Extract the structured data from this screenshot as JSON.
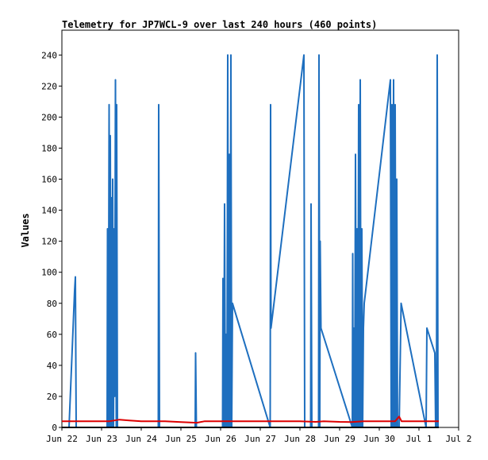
{
  "chart_data": {
    "type": "line",
    "title": "Telemetry for JP7WCL-9 over last 240 hours (460 points)",
    "xlabel": "",
    "ylabel": "Values",
    "x_tick_labels": [
      "Jun 22",
      "Jun 23",
      "Jun 24",
      "Jun 25",
      "Jun 26",
      "Jun 27",
      "Jun 28",
      "Jun 29",
      "Jun 30",
      "Jul 1",
      "Jul 2"
    ],
    "xlim_days": [
      0,
      10
    ],
    "ylim": [
      0,
      256
    ],
    "y_ticks": [
      0,
      20,
      40,
      60,
      80,
      100,
      120,
      140,
      160,
      180,
      200,
      220,
      240
    ],
    "grid": false,
    "legend": "none",
    "series": [
      {
        "color": "#1e6fbf",
        "points": [
          [
            0.18,
            0
          ],
          [
            0.32,
            88
          ],
          [
            0.34,
            97
          ],
          [
            0.36,
            0
          ],
          [
            1.14,
            0
          ],
          [
            1.15,
            128
          ],
          [
            1.17,
            0
          ],
          [
            1.19,
            208
          ],
          [
            1.21,
            0
          ],
          [
            1.22,
            188
          ],
          [
            1.24,
            0
          ],
          [
            1.25,
            148
          ],
          [
            1.27,
            0
          ],
          [
            1.28,
            160
          ],
          [
            1.3,
            0
          ],
          [
            1.32,
            128
          ],
          [
            1.33,
            20
          ],
          [
            1.35,
            224
          ],
          [
            1.37,
            0
          ],
          [
            1.38,
            208
          ],
          [
            1.4,
            0
          ],
          [
            2.43,
            0
          ],
          [
            2.44,
            208
          ],
          [
            2.46,
            0
          ],
          [
            3.36,
            0
          ],
          [
            3.37,
            48
          ],
          [
            3.39,
            0
          ],
          [
            4.05,
            0
          ],
          [
            4.06,
            96
          ],
          [
            4.08,
            0
          ],
          [
            4.1,
            144
          ],
          [
            4.12,
            0
          ],
          [
            4.14,
            60
          ],
          [
            4.16,
            0
          ],
          [
            4.18,
            240
          ],
          [
            4.2,
            0
          ],
          [
            4.22,
            176
          ],
          [
            4.24,
            0
          ],
          [
            4.26,
            240
          ],
          [
            4.28,
            0
          ],
          [
            4.3,
            80
          ],
          [
            5.25,
            0
          ],
          [
            5.26,
            208
          ],
          [
            5.27,
            64
          ],
          [
            6.1,
            240
          ],
          [
            6.12,
            0
          ],
          [
            6.27,
            0
          ],
          [
            6.28,
            144
          ],
          [
            6.3,
            0
          ],
          [
            6.47,
            0
          ],
          [
            6.48,
            240
          ],
          [
            6.5,
            0
          ],
          [
            6.51,
            120
          ],
          [
            6.53,
            64
          ],
          [
            7.32,
            0
          ],
          [
            7.33,
            112
          ],
          [
            7.34,
            0
          ],
          [
            7.36,
            64
          ],
          [
            7.38,
            0
          ],
          [
            7.4,
            176
          ],
          [
            7.42,
            0
          ],
          [
            7.44,
            128
          ],
          [
            7.46,
            0
          ],
          [
            7.48,
            208
          ],
          [
            7.5,
            0
          ],
          [
            7.52,
            224
          ],
          [
            7.54,
            0
          ],
          [
            7.56,
            128
          ],
          [
            7.58,
            0
          ],
          [
            7.6,
            64
          ],
          [
            7.62,
            80
          ],
          [
            8.28,
            224
          ],
          [
            8.3,
            0
          ],
          [
            8.32,
            208
          ],
          [
            8.34,
            0
          ],
          [
            8.36,
            224
          ],
          [
            8.38,
            0
          ],
          [
            8.4,
            208
          ],
          [
            8.42,
            0
          ],
          [
            8.44,
            160
          ],
          [
            8.46,
            0
          ],
          [
            8.5,
            0
          ],
          [
            8.55,
            80
          ],
          [
            9.18,
            0
          ],
          [
            9.2,
            64
          ],
          [
            9.4,
            48
          ],
          [
            9.42,
            0
          ],
          [
            9.44,
            0
          ],
          [
            9.46,
            240
          ],
          [
            9.48,
            0
          ]
        ]
      },
      {
        "color": "#dd0000",
        "points": [
          [
            0.0,
            4
          ],
          [
            0.4,
            4
          ],
          [
            1.0,
            4
          ],
          [
            1.2,
            4
          ],
          [
            1.45,
            5
          ],
          [
            1.7,
            4.5
          ],
          [
            2.0,
            4
          ],
          [
            2.6,
            4
          ],
          [
            3.0,
            3.5
          ],
          [
            3.4,
            3
          ],
          [
            3.6,
            4
          ],
          [
            4.0,
            4
          ],
          [
            4.5,
            4
          ],
          [
            5.0,
            4
          ],
          [
            5.5,
            4
          ],
          [
            6.0,
            4
          ],
          [
            6.4,
            3.6
          ],
          [
            6.6,
            4
          ],
          [
            7.0,
            3.6
          ],
          [
            7.3,
            3.5
          ],
          [
            7.6,
            4
          ],
          [
            8.0,
            4
          ],
          [
            8.4,
            4
          ],
          [
            8.5,
            7
          ],
          [
            8.56,
            4
          ],
          [
            9.0,
            4
          ],
          [
            9.5,
            4
          ]
        ]
      },
      {
        "color": "#000000",
        "points": [
          [
            0.0,
            0
          ],
          [
            9.5,
            0
          ]
        ]
      }
    ]
  }
}
